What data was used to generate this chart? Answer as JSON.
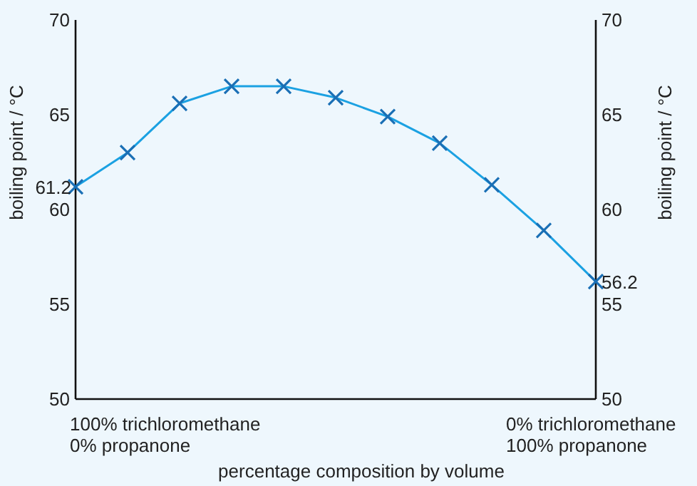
{
  "chart_data": {
    "type": "line",
    "xlabel": "percentage composition by volume",
    "ylabel": "boiling point  / °C",
    "y2label": "boiling point  / °C",
    "categories": [
      null,
      null,
      null,
      null,
      null,
      null,
      null,
      null,
      null,
      null,
      null
    ],
    "series": [
      {
        "color": "#1ba1e2",
        "values": [
          61.2,
          63.0,
          65.6,
          66.5,
          66.5,
          65.9,
          64.9,
          63.5,
          61.3,
          58.9,
          56.2
        ],
        "value_labels": [
          "61.2",
          null,
          null,
          null,
          null,
          null,
          null,
          null,
          null,
          null,
          "56.2"
        ]
      }
    ],
    "ylim": [
      50,
      70
    ],
    "yticks": [
      50,
      55,
      60,
      65,
      70
    ],
    "y2lim": [
      50,
      70
    ],
    "y2ticks": [
      50,
      55,
      60,
      65,
      70
    ],
    "tick_labels": "y",
    "marker": "cross",
    "grid": false,
    "annotations": [
      "100% trichloromethane",
      "0% propanone",
      "0% trichloromethane",
      "100% propanone"
    ]
  }
}
